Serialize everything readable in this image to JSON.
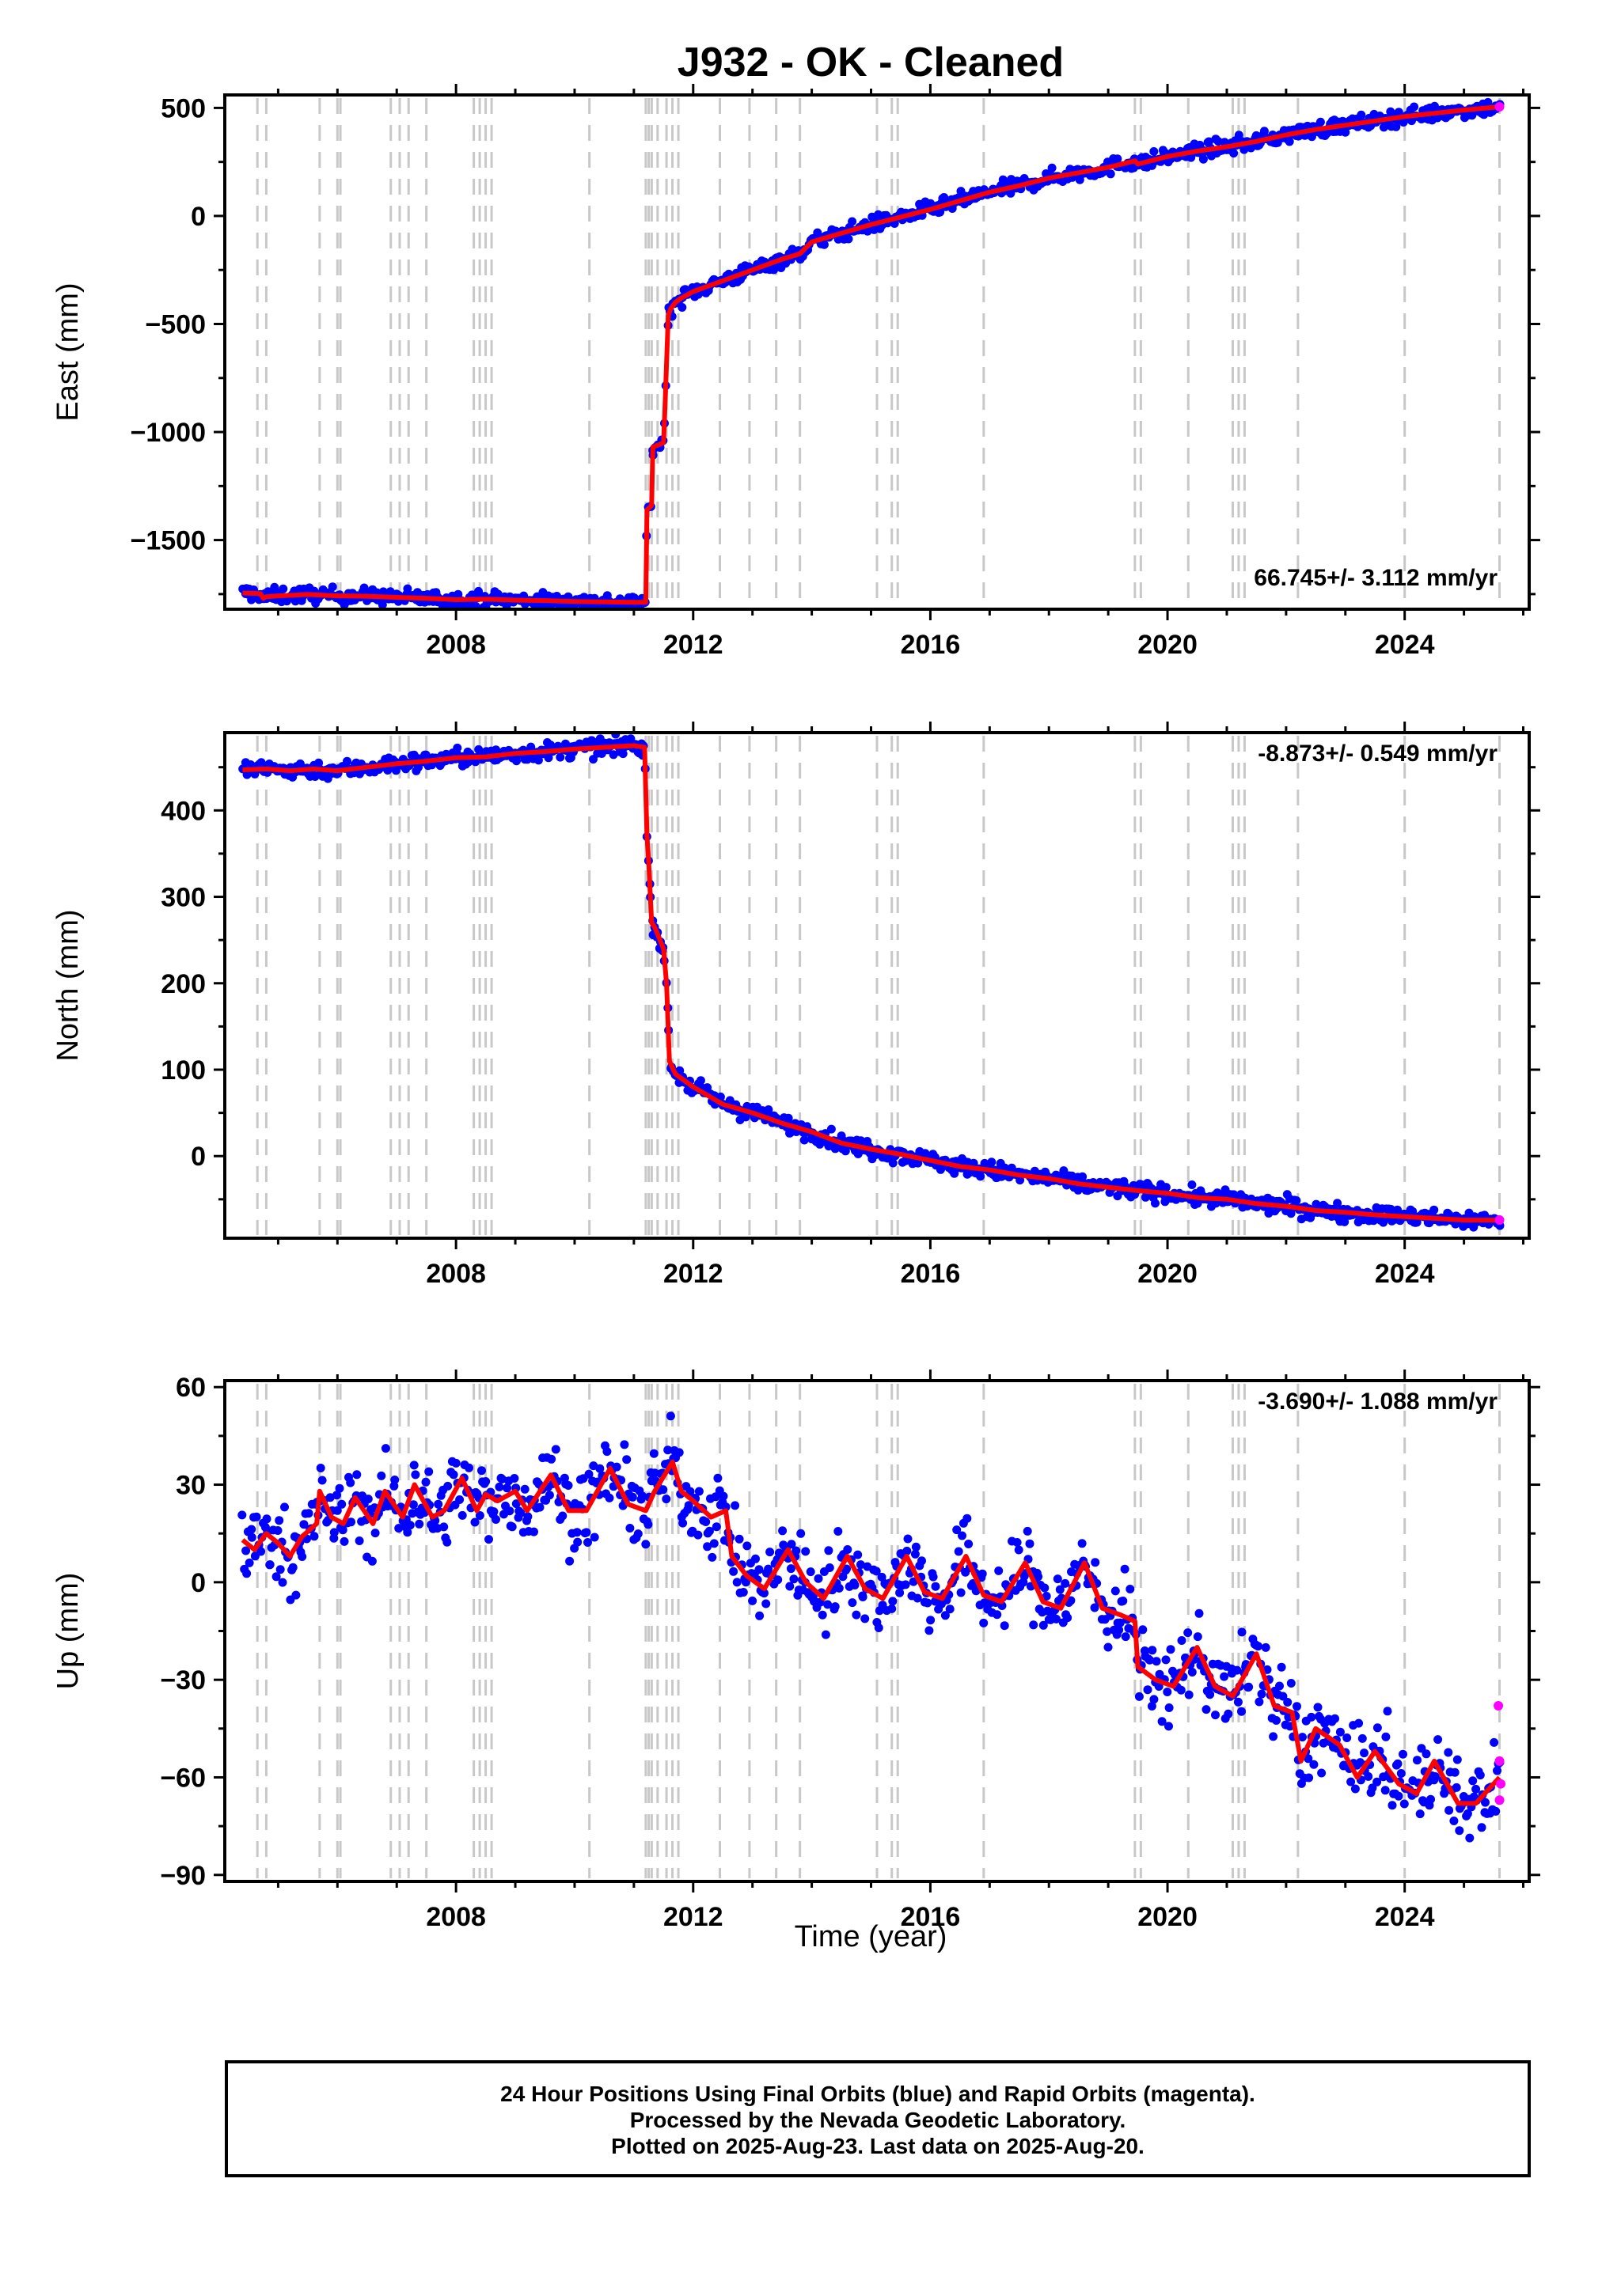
{
  "figure": {
    "title": "J932  - OK - Cleaned",
    "xlabel": "Time (year)"
  },
  "footer": {
    "line1": "24 Hour Positions Using Final Orbits (blue) and Rapid Orbits (magenta).",
    "line2": "Processed by the Nevada Geodetic Laboratory.",
    "line3": "Plotted on 2025-Aug-23. Last data on 2025-Aug-20."
  },
  "colors": {
    "final_orbits": "#0000ff",
    "rapid_orbits": "#ff00ff",
    "model": "#ff0000",
    "steps": "#c8c8c8"
  },
  "chart_data": [
    {
      "type": "scatter",
      "name": "east",
      "ylabel": "East (mm)",
      "rate": "66.745+/- 3.112 mm/yr",
      "xlim": [
        2004.1,
        2026.1
      ],
      "ylim": [
        -1820,
        560
      ],
      "xticks": [
        2008,
        2012,
        2016,
        2020,
        2024
      ],
      "yticks": [
        -1500,
        -1000,
        -500,
        0,
        500
      ],
      "ytick_labels": [
        "−1500",
        "−1000",
        "−500",
        "0",
        "500"
      ],
      "grid": false,
      "steps": [
        2004.65,
        2004.8,
        2005.7,
        2006.0,
        2006.05,
        2006.9,
        2007.05,
        2007.2,
        2007.5,
        2008.3,
        2008.4,
        2008.5,
        2008.6,
        2010.25,
        2011.2,
        2011.25,
        2011.3,
        2011.4,
        2011.55,
        2011.65,
        2011.75,
        2012.45,
        2012.95,
        2013.4,
        2013.8,
        2015.1,
        2015.35,
        2015.45,
        2016.9,
        2019.45,
        2019.55,
        2020.35,
        2021.1,
        2021.2,
        2021.3,
        2022.2,
        2024.0,
        2025.6
      ],
      "model": {
        "x": [
          2004.4,
          2004.7,
          2004.75,
          2004.8,
          2005.0,
          2005.5,
          2006.0,
          2006.5,
          2007.0,
          2007.5,
          2008.0,
          2008.5,
          2009.0,
          2009.5,
          2010.0,
          2010.5,
          2011.0,
          2011.2,
          2011.22,
          2011.3,
          2011.32,
          2011.5,
          2011.52,
          2011.58,
          2011.62,
          2011.7,
          2011.8,
          2012.0,
          2012.5,
          2013.0,
          2013.5,
          2013.8,
          2014.0,
          2014.5,
          2015.0,
          2015.5,
          2016.0,
          2016.5,
          2017.0,
          2017.5,
          2018.0,
          2018.5,
          2019.0,
          2019.45,
          2019.5,
          2020.0,
          2020.5,
          2021.0,
          2021.5,
          2022.0,
          2022.5,
          2023.0,
          2023.5,
          2024.0,
          2024.5,
          2025.0,
          2025.6
        ],
        "y": [
          -1745,
          -1748,
          -1770,
          -1762,
          -1758,
          -1752,
          -1758,
          -1760,
          -1765,
          -1770,
          -1776,
          -1774,
          -1778,
          -1780,
          -1784,
          -1786,
          -1788,
          -1788,
          -1360,
          -1340,
          -1070,
          -1050,
          -920,
          -460,
          -430,
          -400,
          -380,
          -350,
          -300,
          -250,
          -200,
          -175,
          -120,
          -80,
          -40,
          -5,
          30,
          70,
          110,
          140,
          175,
          200,
          225,
          255,
          240,
          275,
          300,
          320,
          345,
          375,
          400,
          420,
          440,
          460,
          475,
          490,
          505
        ]
      },
      "spread": 18,
      "rapid": {
        "x": [
          2025.6
        ],
        "y": [
          505
        ]
      }
    },
    {
      "type": "scatter",
      "name": "north",
      "ylabel": "North (mm)",
      "rate": "-8.873+/- 0.549 mm/yr",
      "xlim": [
        2004.1,
        2026.1
      ],
      "ylim": [
        -95,
        490
      ],
      "xticks": [
        2008,
        2012,
        2016,
        2020,
        2024
      ],
      "yticks": [
        0,
        100,
        200,
        300,
        400
      ],
      "ytick_labels": [
        "0",
        "100",
        "200",
        "300",
        "400"
      ],
      "grid": false,
      "steps": [
        2004.65,
        2004.8,
        2005.7,
        2006.0,
        2006.05,
        2006.9,
        2007.05,
        2007.2,
        2007.5,
        2008.3,
        2008.4,
        2008.5,
        2008.6,
        2010.25,
        2011.2,
        2011.25,
        2011.3,
        2011.4,
        2011.55,
        2011.65,
        2011.75,
        2012.45,
        2012.95,
        2013.4,
        2013.8,
        2015.1,
        2015.35,
        2015.45,
        2016.9,
        2019.45,
        2019.55,
        2020.35,
        2021.1,
        2021.2,
        2021.3,
        2022.2,
        2024.0,
        2025.6
      ],
      "model": {
        "x": [
          2004.4,
          2004.8,
          2005.2,
          2005.6,
          2006.0,
          2006.5,
          2007.0,
          2007.5,
          2008.0,
          2008.5,
          2009.0,
          2009.5,
          2010.0,
          2010.5,
          2011.0,
          2011.18,
          2011.22,
          2011.25,
          2011.3,
          2011.35,
          2011.5,
          2011.55,
          2011.6,
          2011.7,
          2012.0,
          2012.5,
          2013.0,
          2013.5,
          2014.0,
          2014.5,
          2015.0,
          2015.5,
          2016.0,
          2016.5,
          2017.0,
          2017.5,
          2018.0,
          2018.5,
          2019.0,
          2019.5,
          2020.0,
          2020.5,
          2021.0,
          2021.5,
          2022.0,
          2022.5,
          2023.0,
          2023.5,
          2024.0,
          2024.5,
          2025.0,
          2025.6
        ],
        "y": [
          447,
          448,
          446,
          448,
          446,
          450,
          454,
          457,
          461,
          462,
          466,
          468,
          471,
          473,
          475,
          473,
          370,
          340,
          270,
          265,
          240,
          200,
          110,
          95,
          80,
          60,
          50,
          38,
          28,
          15,
          8,
          2,
          -5,
          -12,
          -16,
          -22,
          -26,
          -32,
          -36,
          -40,
          -43,
          -48,
          -50,
          -55,
          -58,
          -63,
          -65,
          -68,
          -70,
          -72,
          -74,
          -74
        ]
      },
      "spread": 5,
      "rapid": {
        "x": [
          2025.6
        ],
        "y": [
          -74
        ]
      }
    },
    {
      "type": "scatter",
      "name": "up",
      "ylabel": "Up (mm)",
      "rate": "-3.690+/- 1.088 mm/yr",
      "xlim": [
        2004.1,
        2026.1
      ],
      "ylim": [
        -92,
        62
      ],
      "xticks": [
        2008,
        2012,
        2016,
        2020,
        2024
      ],
      "yticks": [
        -90,
        -60,
        -30,
        0,
        30,
        60
      ],
      "ytick_labels": [
        "−90",
        "−60",
        "−30",
        "0",
        "30",
        "60"
      ],
      "grid": false,
      "steps": [
        2004.65,
        2004.8,
        2005.7,
        2006.0,
        2006.05,
        2006.9,
        2007.05,
        2007.2,
        2007.5,
        2008.3,
        2008.4,
        2008.5,
        2008.6,
        2010.25,
        2011.2,
        2011.25,
        2011.3,
        2011.4,
        2011.55,
        2011.65,
        2011.75,
        2012.45,
        2012.95,
        2013.4,
        2013.8,
        2015.1,
        2015.35,
        2015.45,
        2016.9,
        2019.45,
        2019.55,
        2020.35,
        2021.1,
        2021.2,
        2021.3,
        2022.2,
        2024.0,
        2025.6
      ],
      "model": {
        "x": [
          2004.4,
          2004.6,
          2004.8,
          2005.0,
          2005.2,
          2005.4,
          2005.65,
          2005.7,
          2005.9,
          2006.1,
          2006.3,
          2006.6,
          2006.8,
          2007.1,
          2007.3,
          2007.6,
          2007.8,
          2008.1,
          2008.35,
          2008.5,
          2008.7,
          2009.0,
          2009.2,
          2009.6,
          2009.9,
          2010.2,
          2010.6,
          2010.9,
          2011.2,
          2011.35,
          2011.65,
          2011.8,
          2012.0,
          2012.3,
          2012.55,
          2012.65,
          2012.9,
          2013.2,
          2013.6,
          2013.9,
          2014.2,
          2014.6,
          2014.9,
          2015.2,
          2015.6,
          2015.9,
          2016.2,
          2016.6,
          2016.9,
          2017.2,
          2017.6,
          2017.9,
          2018.2,
          2018.6,
          2018.9,
          2019.2,
          2019.45,
          2019.5,
          2019.8,
          2020.1,
          2020.5,
          2020.8,
          2021.1,
          2021.5,
          2021.8,
          2022.1,
          2022.25,
          2022.5,
          2022.9,
          2023.2,
          2023.5,
          2023.9,
          2024.2,
          2024.5,
          2024.9,
          2025.2,
          2025.6
        ],
        "y": [
          13,
          10,
          15,
          12,
          8,
          14,
          18,
          28,
          20,
          18,
          26,
          18,
          28,
          20,
          30,
          20,
          22,
          32,
          22,
          27,
          25,
          28,
          22,
          33,
          22,
          22,
          35,
          24,
          22,
          28,
          37,
          28,
          25,
          20,
          22,
          8,
          2,
          -2,
          10,
          0,
          -5,
          8,
          -2,
          -5,
          8,
          -3,
          -5,
          8,
          -4,
          -6,
          6,
          -6,
          -8,
          6,
          -8,
          -10,
          -12,
          -26,
          -30,
          -32,
          -20,
          -32,
          -35,
          -22,
          -38,
          -40,
          -55,
          -45,
          -50,
          -60,
          -52,
          -62,
          -65,
          -55,
          -68,
          -68,
          -60
        ]
      },
      "spread": 6,
      "rapid": {
        "x": [
          2025.58,
          2025.6,
          2025.62,
          2025.6
        ],
        "y": [
          -38,
          -55,
          -62,
          -67
        ]
      }
    }
  ]
}
